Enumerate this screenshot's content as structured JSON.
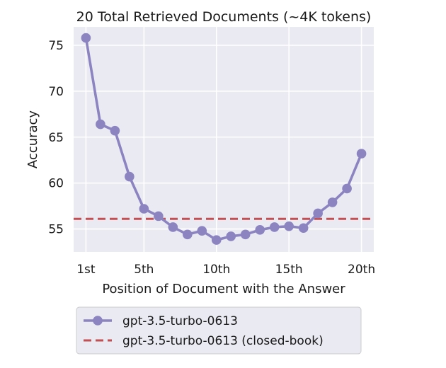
{
  "chart_data": {
    "type": "line",
    "title": "20 Total Retrieved Documents (~4K tokens)",
    "xlabel": "Position of Document with the Answer",
    "ylabel": "Accuracy",
    "x": [
      1,
      2,
      3,
      4,
      5,
      6,
      7,
      8,
      9,
      10,
      11,
      12,
      13,
      14,
      15,
      16,
      17,
      18,
      19,
      20
    ],
    "x_ticks": [
      1,
      5,
      10,
      15,
      20
    ],
    "x_tick_labels": [
      "1st",
      "5th",
      "10th",
      "15th",
      "20th"
    ],
    "y_ticks": [
      55,
      60,
      65,
      70,
      75
    ],
    "y_tick_labels": [
      "55",
      "60",
      "65",
      "70",
      "75"
    ],
    "xlim": [
      0.15,
      20.85
    ],
    "ylim": [
      52.5,
      77
    ],
    "grid": true,
    "legend_position": "below-chart",
    "series": [
      {
        "name": "gpt-3.5-turbo-0613",
        "style": "line-markers",
        "color": "#8c84c0",
        "values": [
          75.8,
          66.4,
          65.7,
          60.7,
          57.2,
          56.4,
          55.2,
          54.4,
          54.8,
          53.8,
          54.2,
          54.4,
          54.9,
          55.2,
          55.3,
          55.1,
          56.7,
          57.9,
          59.4,
          63.2
        ]
      },
      {
        "name": "gpt-3.5-turbo-0613 (closed-book)",
        "style": "dashed-hline",
        "color": "#c44e52",
        "value": 56.1
      }
    ]
  }
}
